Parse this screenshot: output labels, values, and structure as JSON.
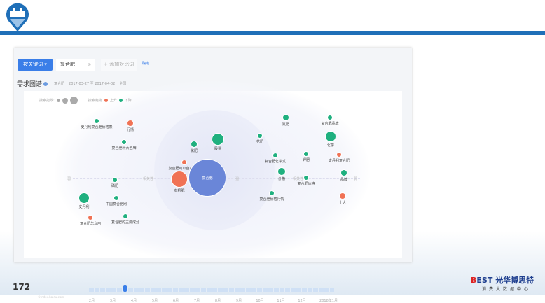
{
  "slide": {
    "page_number": "172"
  },
  "brand": {
    "name_prefix": "B",
    "name_mid": "EST",
    "name_cn": "光华博思特",
    "tagline": "消费大数据中心"
  },
  "search": {
    "mode_button": "按关键词 ▾",
    "keyword": "复合肥",
    "clear": "⊗",
    "add_compare": "+ 添加对比词",
    "confirm": "确定"
  },
  "section": {
    "title": "需求图谱",
    "keyword": "复合肥",
    "date_range": "2017-03-27 至 2017-04-02",
    "region": "全国"
  },
  "legend": {
    "index_label": "搜索指数:",
    "trend_label": "搜索趋势",
    "up": "上升",
    "down": "下降"
  },
  "colors": {
    "up": "#f07255",
    "down": "#1fb07f",
    "center": "#6a86d8",
    "accent": "#3a7ee8"
  },
  "axis": {
    "weak_left": "弱",
    "relevance_left": "相关性",
    "strong_inner": "强",
    "relevance_right": "相关性",
    "weak_right": "弱"
  },
  "bubbles": [
    {
      "label": "史丹利复合肥价格表",
      "trend": "down"
    },
    {
      "label": "行情",
      "trend": "up"
    },
    {
      "label": "复合肥十大名牌",
      "trend": "down"
    },
    {
      "label": "化肥",
      "trend": "down"
    },
    {
      "label": "股票",
      "trend": "down"
    },
    {
      "label": "复合肥可以自己做吗",
      "trend": "up"
    },
    {
      "label": "有机肥",
      "trend": "up"
    },
    {
      "label": "复合肥",
      "trend": "center"
    },
    {
      "label": "磷肥",
      "trend": "down"
    },
    {
      "label": "史丹利",
      "trend": "down"
    },
    {
      "label": "中国复合肥网",
      "trend": "down"
    },
    {
      "label": "复合肥怎么用",
      "trend": "up"
    },
    {
      "label": "复合肥的主要成分",
      "trend": "down"
    },
    {
      "label": "氮肥",
      "trend": "down"
    },
    {
      "label": "复合肥品牌",
      "trend": "down"
    },
    {
      "label": "花肥",
      "trend": "down"
    },
    {
      "label": "化学",
      "trend": "down"
    },
    {
      "label": "复合肥化学式",
      "trend": "down"
    },
    {
      "label": "钾肥",
      "trend": "down"
    },
    {
      "label": "史丹利复合肥",
      "trend": "up"
    },
    {
      "label": "价格",
      "trend": "down"
    },
    {
      "label": "复合肥价格",
      "trend": "down"
    },
    {
      "label": "品牌",
      "trend": "down"
    },
    {
      "label": "复合肥价格行情",
      "trend": "down"
    },
    {
      "label": "十大",
      "trend": "up"
    }
  ],
  "timeline": {
    "months": [
      "2月",
      "3月",
      "4月",
      "5月",
      "6月",
      "7月",
      "8月",
      "9月",
      "10月",
      "11月",
      "12月",
      "2018年1月"
    ],
    "selected_position_pct": 14
  },
  "watermark": "©index.baidu.com"
}
